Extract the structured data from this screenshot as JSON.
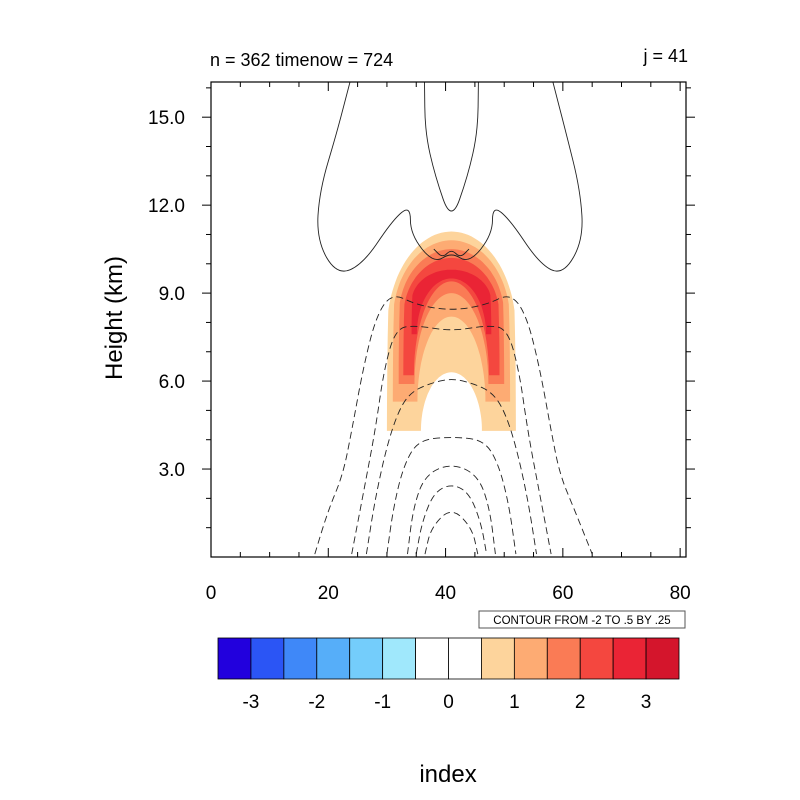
{
  "chart_data": {
    "type": "heatmap",
    "title_left": "n = 362 timenow = 724",
    "title_right": "j = 41",
    "xlabel": "",
    "ylabel": "Height (km)",
    "xlim": [
      0,
      81
    ],
    "ylim": [
      0,
      16.2
    ],
    "x_ticks": [
      0,
      20,
      40,
      60,
      80
    ],
    "x_tick_labels": [
      "0",
      "20",
      "40",
      "60",
      "80"
    ],
    "y_ticks": [
      3,
      6,
      9,
      12,
      15
    ],
    "y_tick_labels": [
      "3.0",
      "6.0",
      "9.0",
      "12.0",
      "15.0"
    ],
    "contour_info": "CONTOUR FROM -2 TO .5 BY .25",
    "colorbar": {
      "title": "index",
      "colors": [
        "#2200dd",
        "#2b55f5",
        "#3f88f8",
        "#56aef9",
        "#74cdfb",
        "#a0e8fc",
        "#ffffff",
        "#ffffff",
        "#fdd49c",
        "#fdab73",
        "#fa7b55",
        "#f4473f",
        "#ea2435",
        "#d4152c"
      ],
      "tick_values": [
        -3,
        -2,
        -1,
        0,
        1,
        2,
        3
      ],
      "tick_labels": [
        "-3",
        "-2",
        "-1",
        "0",
        "1",
        "2",
        "3"
      ],
      "min": -3.5,
      "max": 3.5
    },
    "shaded_field": {
      "description_of_values": "warm anomaly plume centered at x=41",
      "layers": [
        {
          "level": 0.75,
          "color": "#fdd49c"
        },
        {
          "level": 1.25,
          "color": "#fdab73"
        },
        {
          "level": 1.75,
          "color": "#fa7b55"
        },
        {
          "level": 2.25,
          "color": "#f4473f"
        },
        {
          "level": 2.75,
          "color": "#ea2435"
        }
      ]
    },
    "contour_lines": {
      "solid": [
        {
          "points": [
            [
              23.7,
              16.2
            ],
            [
              21.5,
              14.5
            ],
            [
              18.5,
              12.5
            ],
            [
              18,
              10.8
            ],
            [
              21.5,
              9.6
            ],
            [
              26,
              10.0
            ],
            [
              31,
              11.5
            ],
            [
              34,
              12.0
            ],
            [
              34,
              11.0
            ],
            [
              38,
              10.0
            ],
            [
              41,
              10.4
            ],
            [
              44,
              10.0
            ],
            [
              48,
              11.0
            ],
            [
              48,
              12.0
            ],
            [
              51,
              11.5
            ],
            [
              56,
              10.0
            ],
            [
              60,
              9.6
            ],
            [
              63.5,
              10.8
            ],
            [
              63,
              12.5
            ],
            [
              60.5,
              14.5
            ],
            [
              58.3,
              16.2
            ]
          ]
        },
        {
          "points": [
            [
              36.4,
              16.2
            ],
            [
              36.5,
              14.5
            ],
            [
              38.2,
              13.0
            ],
            [
              41,
              11.4
            ],
            [
              43.8,
              13.0
            ],
            [
              45.5,
              14.5
            ],
            [
              45.6,
              16.2
            ]
          ]
        },
        {
          "points": [
            [
              38,
              10.5
            ],
            [
              39.5,
              10.2
            ],
            [
              41,
              10.5
            ],
            [
              42.5,
              10.2
            ],
            [
              44,
              10.5
            ]
          ]
        }
      ],
      "dashed": [
        {
          "points": [
            [
              17.7,
              0.1
            ],
            [
              20,
              1.6
            ],
            [
              22.5,
              2.8
            ],
            [
              24,
              4.3
            ],
            [
              26,
              6.5
            ],
            [
              28.3,
              8.3
            ],
            [
              31,
              9.0
            ],
            [
              35,
              8.6
            ],
            [
              41,
              8.4
            ],
            [
              47,
              8.6
            ],
            [
              51,
              9.0
            ],
            [
              53.7,
              8.3
            ],
            [
              56,
              6.5
            ],
            [
              58,
              4.3
            ],
            [
              59.5,
              2.8
            ],
            [
              62,
              1.6
            ],
            [
              65,
              0.1
            ]
          ]
        },
        {
          "points": [
            [
              24,
              0.1
            ],
            [
              26,
              2.2
            ],
            [
              28,
              4.3
            ],
            [
              29.5,
              6.4
            ],
            [
              31.5,
              7.8
            ],
            [
              35,
              7.9
            ],
            [
              41,
              7.7
            ],
            [
              47,
              7.9
            ],
            [
              50.5,
              7.8
            ],
            [
              52.5,
              6.4
            ],
            [
              54,
              4.3
            ],
            [
              56,
              2.2
            ],
            [
              58,
              0.1
            ]
          ]
        },
        {
          "points": [
            [
              26.5,
              0.1
            ],
            [
              28,
              2.0
            ],
            [
              30,
              3.8
            ],
            [
              32,
              5.0
            ],
            [
              34,
              5.6
            ],
            [
              37,
              5.9
            ],
            [
              41,
              6.1
            ],
            [
              45,
              5.9
            ],
            [
              48,
              5.6
            ],
            [
              50,
              5.0
            ],
            [
              52,
              3.8
            ],
            [
              54,
              2.0
            ],
            [
              55.5,
              0.1
            ]
          ]
        },
        {
          "points": [
            [
              30,
              0.1
            ],
            [
              31.2,
              1.8
            ],
            [
              33,
              3.2
            ],
            [
              35.5,
              4.0
            ],
            [
              41,
              4.1
            ],
            [
              46.5,
              4.0
            ],
            [
              49,
              3.2
            ],
            [
              50.8,
              1.8
            ],
            [
              52,
              0.1
            ]
          ]
        },
        {
          "points": [
            [
              33.5,
              0.1
            ],
            [
              34.5,
              1.7
            ],
            [
              36.5,
              2.8
            ],
            [
              41,
              3.2
            ],
            [
              45.5,
              2.8
            ],
            [
              47.5,
              1.7
            ],
            [
              48.5,
              0.1
            ]
          ]
        },
        {
          "points": [
            [
              35,
              0.1
            ],
            [
              36,
              1.2
            ],
            [
              38,
              2.2
            ],
            [
              41,
              2.5
            ],
            [
              44,
              2.2
            ],
            [
              46,
              1.2
            ],
            [
              47,
              0.1
            ]
          ]
        },
        {
          "points": [
            [
              36.5,
              0.1
            ],
            [
              37.5,
              1.0
            ],
            [
              41,
              1.7
            ],
            [
              44.5,
              1.0
            ],
            [
              45.5,
              0.1
            ]
          ]
        }
      ]
    }
  }
}
